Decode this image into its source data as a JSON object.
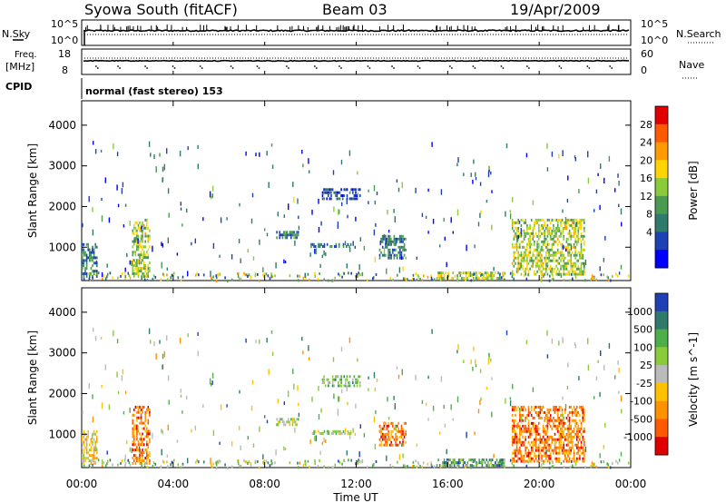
{
  "header": {
    "station": "Syowa South (fitACF)",
    "beam": "Beam 03",
    "date": "19/Apr/2009"
  },
  "noise_panel": {
    "left_label": "N.Sky",
    "right_label": "N.Search",
    "left_ticks": [
      "10^5",
      "10^0"
    ],
    "right_ticks": [
      "10^5",
      "10^0"
    ]
  },
  "freq_panel": {
    "left_label_1": "Freq.",
    "left_label_2": "[MHz]",
    "right_label": "Nave",
    "left_ticks": [
      "18",
      "8"
    ],
    "right_ticks": [
      "60",
      "0"
    ]
  },
  "cpid": {
    "label": "CPID",
    "mode": "normal (fast stereo) 153"
  },
  "x_axis": {
    "title": "Time UT",
    "ticks": [
      "00:00",
      "04:00",
      "08:00",
      "12:00",
      "16:00",
      "20:00",
      "00:00"
    ],
    "range_hours": [
      0,
      24
    ]
  },
  "chart_data": [
    {
      "type": "heatmap",
      "name": "Power",
      "ylabel": "Slant Range [km]",
      "ylim": [
        180,
        4600
      ],
      "y_ticks": [
        "4000",
        "3000",
        "2000",
        "1000"
      ],
      "x_range_ut_hours": [
        0,
        24
      ],
      "colorbar": {
        "label": "Power [dB]",
        "ticks": [
          "28",
          "24",
          "20",
          "16",
          "12",
          "8",
          "4"
        ],
        "range": [
          0,
          30
        ],
        "colors": [
          "#0000ff",
          "#1f3fb4",
          "#2f7a6a",
          "#4a9a50",
          "#8acb3a",
          "#ffd400",
          "#ff9a00",
          "#ff5a00",
          "#e00000"
        ]
      },
      "echo_regions": [
        {
          "ut": [
            0.0,
            0.7
          ],
          "range_km": [
            250,
            1100
          ],
          "level": 8
        },
        {
          "ut": [
            2.2,
            3.0
          ],
          "range_km": [
            250,
            1700
          ],
          "level": 14
        },
        {
          "ut": [
            8.5,
            9.5
          ],
          "range_km": [
            1200,
            1400
          ],
          "level": 6
        },
        {
          "ut": [
            10.0,
            11.8
          ],
          "range_km": [
            1000,
            1100
          ],
          "level": 6
        },
        {
          "ut": [
            10.5,
            12.2
          ],
          "range_km": [
            2150,
            2450
          ],
          "level": 5
        },
        {
          "ut": [
            13.0,
            14.2
          ],
          "range_km": [
            700,
            1300
          ],
          "level": 8
        },
        {
          "ut": [
            15.5,
            18.5
          ],
          "range_km": [
            200,
            400
          ],
          "level": 16
        },
        {
          "ut": [
            18.8,
            22.0
          ],
          "range_km": [
            300,
            1700
          ],
          "level": 16
        }
      ]
    },
    {
      "type": "heatmap",
      "name": "Velocity",
      "ylabel": "Slant Range [km]",
      "ylim": [
        180,
        4600
      ],
      "y_ticks": [
        "4000",
        "3000",
        "2000",
        "1000"
      ],
      "x_range_ut_hours": [
        0,
        24
      ],
      "colorbar": {
        "label": "Velocity [m s^-1]",
        "ticks": [
          "1000",
          "500",
          "100",
          "25",
          "-25",
          "-100",
          "-500",
          "-1000"
        ],
        "colors": [
          "#1f3fb4",
          "#2f7a6a",
          "#4caf4a",
          "#8acb3a",
          "#bbbbbb",
          "#ffc000",
          "#ff9000",
          "#ff5a00",
          "#e00000"
        ]
      },
      "echo_regions": [
        {
          "ut": [
            0.0,
            0.7
          ],
          "range_km": [
            250,
            1100
          ],
          "level": -100
        },
        {
          "ut": [
            2.2,
            3.0
          ],
          "range_km": [
            250,
            1700
          ],
          "level": -500
        },
        {
          "ut": [
            8.5,
            9.5
          ],
          "range_km": [
            1200,
            1400
          ],
          "level": 0
        },
        {
          "ut": [
            10.0,
            11.8
          ],
          "range_km": [
            1000,
            1100
          ],
          "level": 0
        },
        {
          "ut": [
            10.5,
            12.2
          ],
          "range_km": [
            2150,
            2450
          ],
          "level": 25
        },
        {
          "ut": [
            13.0,
            14.2
          ],
          "range_km": [
            700,
            1300
          ],
          "level": -500
        },
        {
          "ut": [
            15.5,
            18.5
          ],
          "range_km": [
            200,
            400
          ],
          "level": 100
        },
        {
          "ut": [
            18.8,
            22.0
          ],
          "range_km": [
            300,
            1700
          ],
          "level": -500
        }
      ]
    }
  ]
}
